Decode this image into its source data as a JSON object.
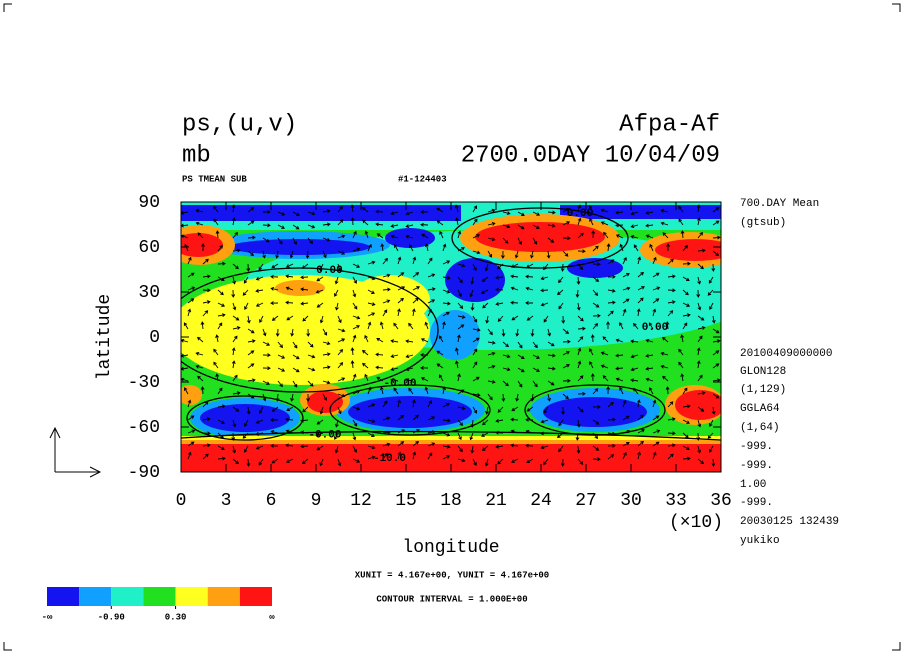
{
  "chart_data": {
    "type": "contour",
    "title_left": "ps,(u,v)",
    "unit": "mb",
    "title_right": "Afpa-Af",
    "time": "2700.0DAY 10/04/09",
    "subtitle_left": "PS TMEAN SUB",
    "subtitle_mid": "#1-124403",
    "xlabel": "longitude",
    "ylabel": "latitude",
    "xlim": [
      0,
      36
    ],
    "xticks": [
      0,
      3,
      6,
      9,
      12,
      15,
      18,
      21,
      24,
      27,
      30,
      33,
      36
    ],
    "x_scale_label": "(×10)",
    "ylim": [
      -90,
      90
    ],
    "yticks": [
      -90,
      -60,
      -30,
      0,
      30,
      60,
      90
    ],
    "side_info": [
      "700.DAY Mean",
      "(gtsub)",
      "20100409000000",
      "GLON128",
      "(1,129)",
      "GGLA64",
      "(1,64)",
      "-999.",
      "-999.",
      "1.00",
      "-999.",
      "20030125 132439",
      "yukiko"
    ],
    "contour_labels": [
      {
        "x": 26.6,
        "y": 82.7,
        "label": "0.00"
      },
      {
        "x": 9.9,
        "y": 44.7,
        "label": "0.00"
      },
      {
        "x": 31.6,
        "y": 6.7,
        "label": "0.00"
      },
      {
        "x": 14.6,
        "y": -30.7,
        "label": "-0.00"
      },
      {
        "x": 9.6,
        "y": -65,
        "label": "-0.00"
      },
      {
        "x": 13.9,
        "y": -80.7,
        "label": "-10.0"
      }
    ],
    "unit_note": "XUNIT = 4.167e+00, YUNIT = 4.167e+00",
    "contour_interval": "CONTOUR INTERVAL = 1.000E+00",
    "colorbar": {
      "colors": [
        "#1414f0",
        "#10a0ff",
        "#20f0c8",
        "#20e020",
        "#ffff20",
        "#ffa010",
        "#ff1414"
      ],
      "lim": [
        -2.1,
        2.1
      ],
      "ends": [
        "-∞",
        "∞"
      ],
      "ticks": [
        {
          "value": -0.9,
          "label": "-0.90"
        },
        {
          "value": 0.3,
          "label": "0.30"
        }
      ]
    }
  }
}
